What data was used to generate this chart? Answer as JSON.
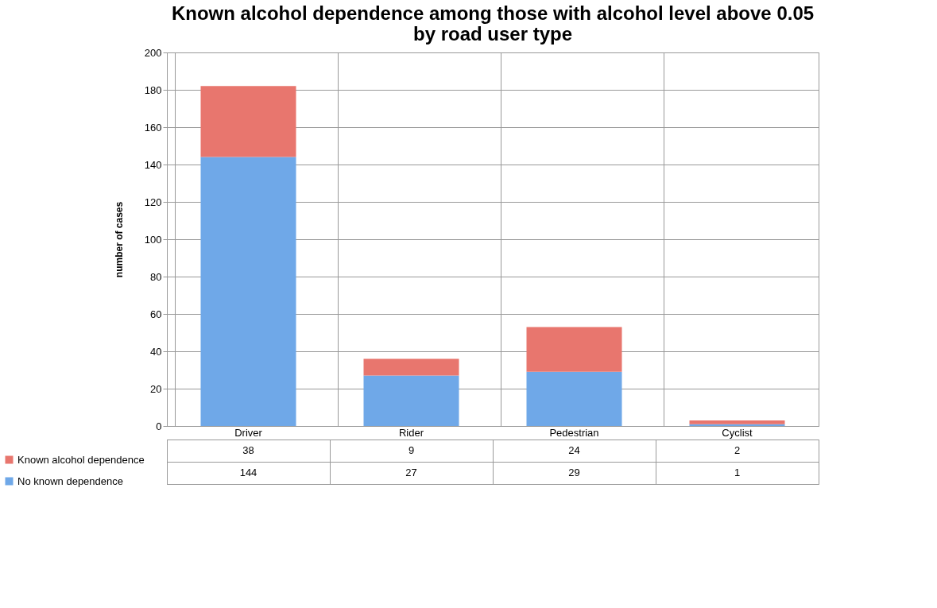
{
  "chart_data": {
    "type": "bar",
    "title": "Known alcohol dependence among those with alcohol level above 0.05\nby road user type",
    "ylabel": "number of cases",
    "categories": [
      "Driver",
      "Rider",
      "Pedestrian",
      "Cyclist"
    ],
    "stacked": true,
    "series": [
      {
        "name": "No known dependence",
        "color": "#6fa8e8",
        "values": [
          144,
          27,
          29,
          1
        ]
      },
      {
        "name": "Known alcohol dependence",
        "color": "#e8766e",
        "values": [
          38,
          9,
          24,
          2
        ]
      }
    ],
    "ylim": [
      0,
      200
    ],
    "yticks": [
      0,
      20,
      40,
      60,
      80,
      100,
      120,
      140,
      160,
      180,
      200
    ],
    "grid": "y",
    "legend": "bottom left",
    "data_labels": true
  }
}
